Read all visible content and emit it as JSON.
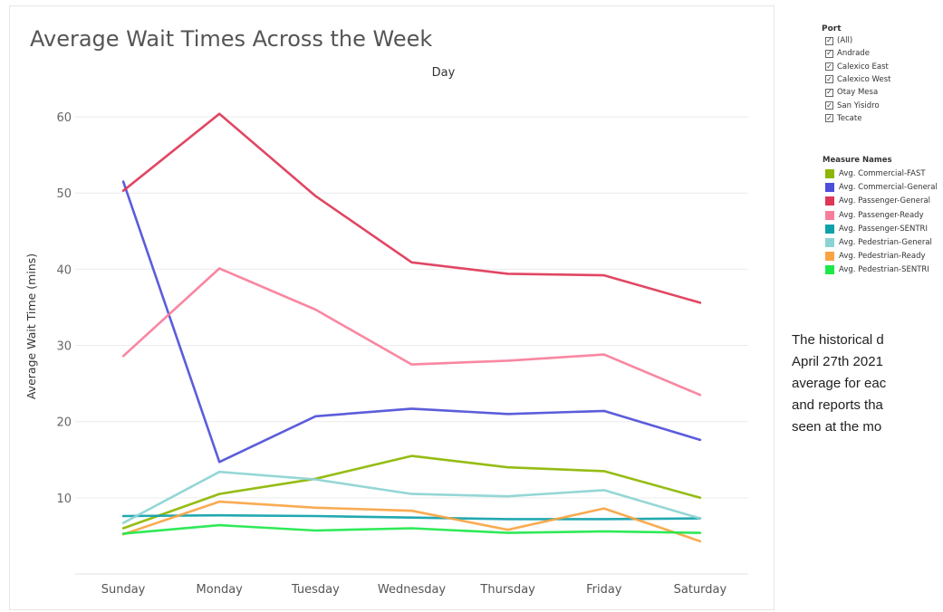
{
  "chart_data": {
    "type": "line",
    "title": "Average Wait Times Across the Week",
    "xlabel": "Day",
    "ylabel": "Average Wait Time (mins)",
    "categories": [
      "Sunday",
      "Monday",
      "Tuesday",
      "Wednesday",
      "Thursday",
      "Friday",
      "Saturday"
    ],
    "ylim": [
      0,
      65
    ],
    "yticks": [
      10,
      20,
      30,
      40,
      50,
      60
    ],
    "grid": true,
    "legend_position": "right",
    "series": [
      {
        "name": "Avg. Commercial-FAST",
        "color": "#8db600",
        "values": [
          6.0,
          10.5,
          12.5,
          15.5,
          14.0,
          13.5,
          10.0
        ]
      },
      {
        "name": "Avg. Commercial-General",
        "color": "#4d4fd8",
        "values": [
          51.5,
          14.7,
          20.7,
          21.7,
          21.0,
          21.4,
          17.6
        ]
      },
      {
        "name": "Avg. Passenger-General",
        "color": "#de3656",
        "values": [
          50.3,
          60.4,
          49.6,
          40.9,
          39.4,
          39.2,
          35.6
        ]
      },
      {
        "name": "Avg. Passenger-Ready",
        "color": "#f87d9a",
        "values": [
          28.6,
          40.1,
          34.7,
          27.5,
          28.0,
          28.8,
          23.5
        ]
      },
      {
        "name": "Avg. Passenger-SENTRI",
        "color": "#0fa1aa",
        "values": [
          7.6,
          7.7,
          7.6,
          7.4,
          7.2,
          7.2,
          7.3
        ]
      },
      {
        "name": "Avg. Pedestrian-General",
        "color": "#8cd3d3",
        "values": [
          6.7,
          13.4,
          12.4,
          10.5,
          10.2,
          11.0,
          7.3
        ]
      },
      {
        "name": "Avg. Pedestrian-Ready",
        "color": "#f9a443",
        "values": [
          5.2,
          9.5,
          8.7,
          8.3,
          5.8,
          8.6,
          4.3
        ]
      },
      {
        "name": "Avg. Pedestrian-SENTRI",
        "color": "#1de84a",
        "values": [
          5.3,
          6.4,
          5.7,
          6.0,
          5.4,
          5.6,
          5.4
        ]
      }
    ]
  },
  "filter": {
    "title": "Port",
    "items": [
      "(All)",
      "Andrade",
      "Calexico East",
      "Calexico West",
      "Otay Mesa",
      "San Yisidro",
      "Tecate"
    ]
  },
  "legend": {
    "title": "Measure Names"
  },
  "description": {
    "lines": [
      "The historical d",
      "April 27th 2021",
      "average for eac",
      "and reports tha",
      "seen at the mo"
    ]
  }
}
